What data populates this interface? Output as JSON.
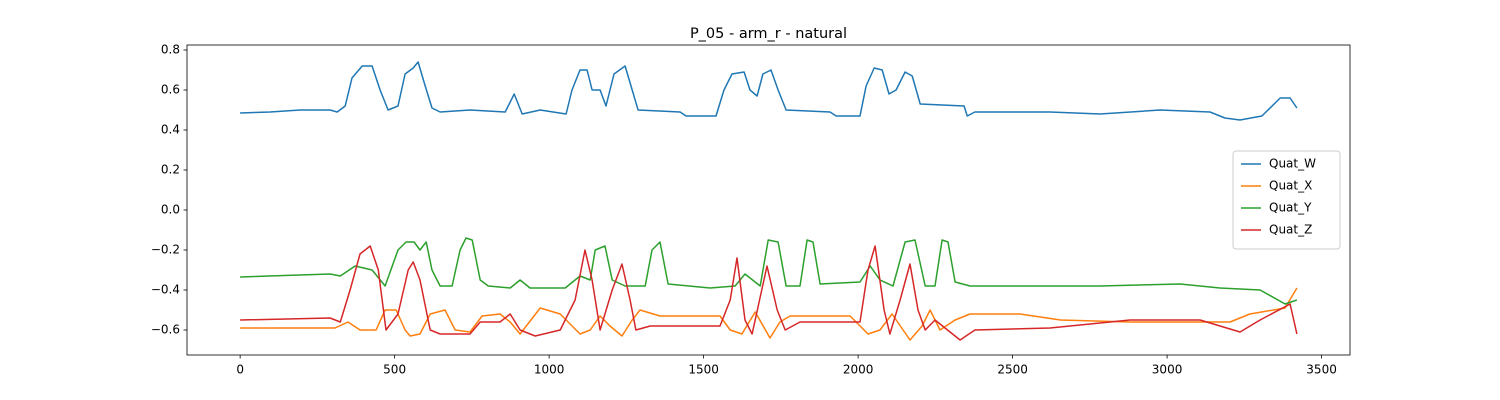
{
  "chart_data": {
    "type": "line",
    "title": "P_05 - arm_r - natural",
    "xlim": [
      -172,
      3592
    ],
    "xticks": [
      0,
      500,
      1000,
      1500,
      2000,
      2500,
      3000,
      3500
    ],
    "ylim": [
      -0.725,
      0.825
    ],
    "yticks": [
      {
        "value": -0.6,
        "label": "−0.6"
      },
      {
        "value": -0.4,
        "label": "−0.4"
      },
      {
        "value": -0.2,
        "label": "−0.2"
      },
      {
        "value": 0,
        "label": "0.0"
      },
      0.2,
      0.4,
      0.6,
      0.8
    ],
    "grid": false,
    "legend": "center right",
    "series": [
      {
        "name": "Quat_W",
        "color": "#1f77b4",
        "x": [
          0,
          97,
          194,
          291,
          314,
          340,
          362,
          395,
          427,
          453,
          479,
          511,
          534,
          560,
          576,
          599,
          621,
          647,
          744,
          858,
          887,
          913,
          971,
          1055,
          1074,
          1100,
          1123,
          1139,
          1165,
          1184,
          1210,
          1246,
          1269,
          1288,
          1424,
          1443,
          1540,
          1566,
          1592,
          1631,
          1650,
          1673,
          1692,
          1718,
          1741,
          1767,
          1909,
          1929,
          2006,
          2026,
          2052,
          2078,
          2100,
          2123,
          2152,
          2175,
          2201,
          2343,
          2353,
          2378,
          2621,
          2783,
          2977,
          3139,
          3187,
          3236,
          3307,
          3366,
          3398,
          3420
        ],
        "values": [
          0.485,
          0.49,
          0.5,
          0.5,
          0.49,
          0.52,
          0.66,
          0.72,
          0.72,
          0.6,
          0.5,
          0.52,
          0.68,
          0.71,
          0.74,
          0.62,
          0.51,
          0.49,
          0.5,
          0.49,
          0.58,
          0.48,
          0.5,
          0.48,
          0.6,
          0.7,
          0.7,
          0.6,
          0.6,
          0.52,
          0.68,
          0.72,
          0.6,
          0.5,
          0.49,
          0.47,
          0.47,
          0.6,
          0.68,
          0.69,
          0.6,
          0.57,
          0.68,
          0.7,
          0.6,
          0.5,
          0.49,
          0.47,
          0.47,
          0.62,
          0.71,
          0.7,
          0.58,
          0.6,
          0.69,
          0.67,
          0.53,
          0.52,
          0.47,
          0.49,
          0.49,
          0.48,
          0.5,
          0.49,
          0.46,
          0.45,
          0.47,
          0.56,
          0.56,
          0.51
        ]
      },
      {
        "name": "Quat_X",
        "color": "#ff7f0e",
        "x": [
          0,
          194,
          307,
          349,
          388,
          440,
          469,
          505,
          534,
          550,
          582,
          615,
          663,
          696,
          744,
          783,
          841,
          874,
          906,
          971,
          1036,
          1068,
          1100,
          1133,
          1165,
          1197,
          1236,
          1269,
          1294,
          1359,
          1553,
          1586,
          1624,
          1667,
          1715,
          1747,
          1780,
          1974,
          2032,
          2071,
          2110,
          2168,
          2207,
          2233,
          2265,
          2314,
          2362,
          2524,
          2655,
          2880,
          3204,
          3268,
          3382,
          3420
        ],
        "values": [
          -0.59,
          -0.59,
          -0.59,
          -0.56,
          -0.6,
          -0.6,
          -0.5,
          -0.5,
          -0.6,
          -0.63,
          -0.62,
          -0.52,
          -0.5,
          -0.6,
          -0.61,
          -0.53,
          -0.52,
          -0.56,
          -0.62,
          -0.49,
          -0.52,
          -0.57,
          -0.62,
          -0.6,
          -0.53,
          -0.58,
          -0.63,
          -0.55,
          -0.5,
          -0.53,
          -0.53,
          -0.6,
          -0.62,
          -0.51,
          -0.64,
          -0.56,
          -0.53,
          -0.53,
          -0.62,
          -0.6,
          -0.52,
          -0.65,
          -0.58,
          -0.5,
          -0.6,
          -0.55,
          -0.52,
          -0.52,
          -0.55,
          -0.56,
          -0.56,
          -0.52,
          -0.49,
          -0.39
        ]
      },
      {
        "name": "Quat_Y",
        "color": "#2ca02c",
        "x": [
          0,
          291,
          324,
          372,
          427,
          469,
          511,
          537,
          563,
          582,
          602,
          621,
          647,
          686,
          712,
          731,
          751,
          777,
          803,
          874,
          906,
          938,
          1052,
          1100,
          1133,
          1149,
          1181,
          1204,
          1246,
          1311,
          1333,
          1359,
          1385,
          1521,
          1602,
          1634,
          1683,
          1709,
          1741,
          1767,
          1812,
          1835,
          1854,
          1877,
          2006,
          2039,
          2071,
          2113,
          2152,
          2184,
          2217,
          2249,
          2272,
          2291,
          2314,
          2362,
          2783,
          3042,
          3171,
          3301,
          3382,
          3420
        ],
        "values": [
          -0.335,
          -0.32,
          -0.33,
          -0.28,
          -0.3,
          -0.38,
          -0.2,
          -0.16,
          -0.16,
          -0.2,
          -0.16,
          -0.3,
          -0.38,
          -0.38,
          -0.2,
          -0.14,
          -0.15,
          -0.35,
          -0.38,
          -0.39,
          -0.35,
          -0.39,
          -0.39,
          -0.33,
          -0.35,
          -0.2,
          -0.18,
          -0.35,
          -0.38,
          -0.38,
          -0.2,
          -0.16,
          -0.37,
          -0.39,
          -0.38,
          -0.32,
          -0.38,
          -0.15,
          -0.16,
          -0.38,
          -0.38,
          -0.15,
          -0.16,
          -0.37,
          -0.36,
          -0.28,
          -0.35,
          -0.38,
          -0.16,
          -0.15,
          -0.38,
          -0.38,
          -0.15,
          -0.16,
          -0.36,
          -0.38,
          -0.38,
          -0.37,
          -0.39,
          -0.4,
          -0.47,
          -0.45
        ]
      },
      {
        "name": "Quat_Z",
        "color": "#d62728",
        "x": [
          0,
          291,
          324,
          356,
          388,
          421,
          447,
          472,
          511,
          544,
          560,
          582,
          615,
          647,
          744,
          777,
          841,
          874,
          906,
          955,
          1036,
          1084,
          1116,
          1139,
          1165,
          1204,
          1236,
          1262,
          1281,
          1327,
          1553,
          1586,
          1608,
          1634,
          1657,
          1705,
          1738,
          1764,
          1812,
          2006,
          2032,
          2055,
          2084,
          2103,
          2136,
          2168,
          2194,
          2217,
          2249,
          2330,
          2378,
          2621,
          2880,
          3107,
          3236,
          3301,
          3398,
          3420
        ],
        "values": [
          -0.55,
          -0.54,
          -0.56,
          -0.4,
          -0.22,
          -0.18,
          -0.3,
          -0.6,
          -0.52,
          -0.3,
          -0.26,
          -0.35,
          -0.6,
          -0.62,
          -0.62,
          -0.56,
          -0.56,
          -0.52,
          -0.6,
          -0.63,
          -0.6,
          -0.45,
          -0.2,
          -0.35,
          -0.6,
          -0.4,
          -0.27,
          -0.45,
          -0.6,
          -0.58,
          -0.58,
          -0.45,
          -0.24,
          -0.55,
          -0.62,
          -0.28,
          -0.5,
          -0.6,
          -0.56,
          -0.56,
          -0.3,
          -0.18,
          -0.5,
          -0.62,
          -0.45,
          -0.27,
          -0.5,
          -0.6,
          -0.55,
          -0.65,
          -0.6,
          -0.59,
          -0.55,
          -0.55,
          -0.61,
          -0.55,
          -0.47,
          -0.62
        ]
      }
    ]
  }
}
